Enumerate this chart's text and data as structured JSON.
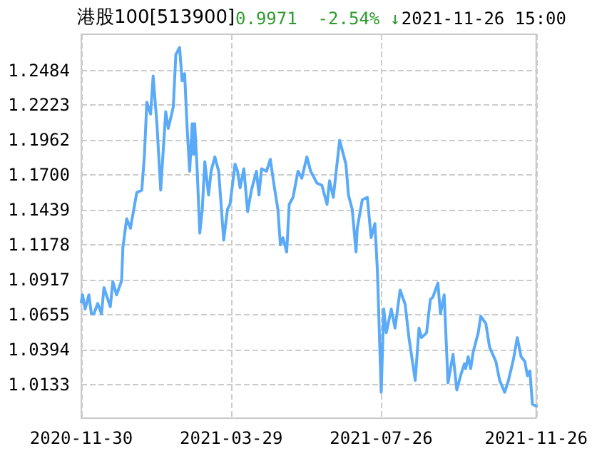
{
  "chart_data": {
    "type": "line",
    "title": "港股100[513900]",
    "subtitle": "0.9971  -2.54% ↓",
    "annotations": [
      "2021-11-26 15:00"
    ],
    "x": [
      "2020-11-30",
      "2020-12-01",
      "2020-12-03",
      "2020-12-06",
      "2020-12-08",
      "2020-12-10",
      "2020-12-13",
      "2020-12-16",
      "2020-12-18",
      "2020-12-23",
      "2020-12-25",
      "2020-12-28",
      "2021-01-01",
      "2021-01-02",
      "2021-01-05",
      "2021-01-08",
      "2021-01-11",
      "2021-01-13",
      "2021-01-17",
      "2021-01-19",
      "2021-01-21",
      "2021-01-24",
      "2021-01-26",
      "2021-01-29",
      "2021-02-01",
      "2021-02-05",
      "2021-02-07",
      "2021-02-11",
      "2021-02-13",
      "2021-02-16",
      "2021-02-18",
      "2021-02-20",
      "2021-02-22",
      "2021-02-24",
      "2021-02-26",
      "2021-02-27",
      "2021-02-28",
      "2021-03-02",
      "2021-03-04",
      "2021-03-06",
      "2021-03-08",
      "2021-03-11",
      "2021-03-13",
      "2021-03-16",
      "2021-03-19",
      "2021-03-23",
      "2021-03-26",
      "2021-03-28",
      "2021-04-01",
      "2021-04-03",
      "2021-04-05",
      "2021-04-08",
      "2021-04-11",
      "2021-04-14",
      "2021-04-18",
      "2021-04-20",
      "2021-04-22",
      "2021-04-26",
      "2021-04-29",
      "2021-05-02",
      "2021-05-05",
      "2021-05-07",
      "2021-05-09",
      "2021-05-12",
      "2021-05-14",
      "2021-05-17",
      "2021-05-21",
      "2021-05-24",
      "2021-05-28",
      "2021-05-31",
      "2021-06-05",
      "2021-06-09",
      "2021-06-13",
      "2021-06-15",
      "2021-06-18",
      "2021-06-23",
      "2021-06-28",
      "2021-06-30",
      "2021-07-03",
      "2021-07-06",
      "2021-07-07",
      "2021-07-11",
      "2021-07-15",
      "2021-07-18",
      "2021-07-21",
      "2021-07-23",
      "2021-07-26",
      "2021-07-28",
      "2021-07-30",
      "2021-08-03",
      "2021-08-06",
      "2021-08-10",
      "2021-08-14",
      "2021-08-17",
      "2021-08-22",
      "2021-08-25",
      "2021-08-27",
      "2021-08-31",
      "2021-09-03",
      "2021-09-05",
      "2021-09-09",
      "2021-09-11",
      "2021-09-14",
      "2021-09-17",
      "2021-09-21",
      "2021-09-24",
      "2021-09-27",
      "2021-09-30",
      "2021-10-01",
      "2021-10-03",
      "2021-10-05",
      "2021-10-07",
      "2021-10-11",
      "2021-10-13",
      "2021-10-17",
      "2021-10-20",
      "2021-10-25",
      "2021-10-28",
      "2021-11-01",
      "2021-11-04",
      "2021-11-08",
      "2021-11-11",
      "2021-11-14",
      "2021-11-17",
      "2021-11-19",
      "2021-11-21",
      "2021-11-23",
      "2021-11-26"
    ],
    "series": [
      {
        "color": "#5aaaf8",
        "values": [
          1.075,
          1.0803,
          1.0697,
          1.0803,
          1.0661,
          1.0661,
          1.0739,
          1.0661,
          1.0857,
          1.0714,
          1.0903,
          1.0803,
          1.091,
          1.1159,
          1.1373,
          1.1302,
          1.1462,
          1.1569,
          1.1587,
          1.1836,
          1.2245,
          1.2156,
          1.2441,
          1.2085,
          1.1587,
          1.2174,
          1.2049,
          1.221,
          1.2601,
          1.2655,
          1.2405,
          1.2459,
          1.2049,
          1.1729,
          1.2085,
          1.1854,
          1.2085,
          1.1729,
          1.1266,
          1.1444,
          1.18,
          1.1551,
          1.1729,
          1.1836,
          1.1729,
          1.1213,
          1.1444,
          1.148,
          1.1782,
          1.1729,
          1.1604,
          1.1747,
          1.1426,
          1.1587,
          1.1729,
          1.1551,
          1.1747,
          1.1729,
          1.1818,
          1.1622,
          1.1444,
          1.1177,
          1.1231,
          1.1124,
          1.148,
          1.1533,
          1.1729,
          1.1676,
          1.1836,
          1.1729,
          1.164,
          1.1622,
          1.148,
          1.1658,
          1.1533,
          1.196,
          1.1782,
          1.1551,
          1.1444,
          1.1124,
          1.1302,
          1.1515,
          1.1533,
          1.1231,
          1.1337,
          1.0981,
          1.0074,
          1.0697,
          1.0519,
          1.0697,
          1.0554,
          1.0839,
          1.0732,
          1.0483,
          1.0163,
          1.0554,
          1.0483,
          1.0519,
          1.0768,
          1.0786,
          1.0892,
          1.0661,
          1.0803,
          1.0145,
          1.0358,
          1.0091,
          1.0198,
          1.0287,
          1.0251,
          1.0341,
          1.0251,
          1.0376,
          1.0519,
          1.0643,
          1.059,
          1.0412,
          1.0305,
          1.0163,
          1.0074,
          1.0163,
          1.0323,
          1.0483,
          1.0341,
          1.0305,
          1.0198,
          1.0234,
          0.9985,
          0.9971
        ]
      }
    ],
    "xlim": [
      "2020-11-30",
      "2021-11-26"
    ],
    "xticks": [
      {
        "value": "2020-11-30",
        "label": "2020-11-30"
      },
      {
        "value": "2021-03-29",
        "label": "2021-03-29"
      },
      {
        "value": "2021-07-26",
        "label": "2021-07-26"
      },
      {
        "value": "2021-11-26",
        "label": "2021-11-26"
      }
    ],
    "ylim": [
      0.988,
      1.2754
    ],
    "yticks": [
      {
        "value": 1.0133,
        "label": "1.0133"
      },
      {
        "value": 1.0394,
        "label": "1.0394"
      },
      {
        "value": 1.0655,
        "label": "1.0655"
      },
      {
        "value": 1.0917,
        "label": "1.0917"
      },
      {
        "value": 1.1178,
        "label": "1.1178"
      },
      {
        "value": 1.1439,
        "label": "1.1439"
      },
      {
        "value": 1.17,
        "label": "1.1700"
      },
      {
        "value": 1.1962,
        "label": "1.1962"
      },
      {
        "value": 1.2223,
        "label": "1.2223"
      },
      {
        "value": 1.2484,
        "label": "1.2484"
      }
    ],
    "grid": true,
    "marker": "none",
    "line_style": "solid"
  }
}
